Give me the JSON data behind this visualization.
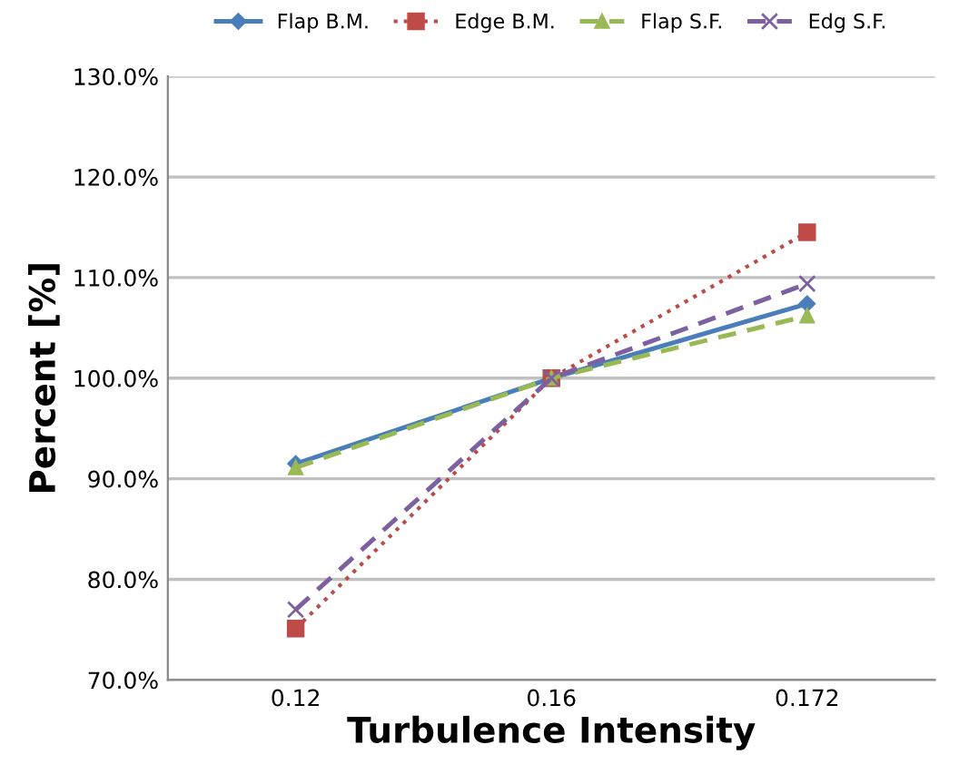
{
  "chart_data": {
    "type": "line",
    "xlabel": "Turbulence Intensity",
    "ylabel": "Percent [%]",
    "categories": [
      "0.12",
      "0.16",
      "0.172"
    ],
    "series": [
      {
        "name": "Flap B.M.",
        "color": "#4a7ebb",
        "values": [
          91.5,
          100,
          107.4
        ],
        "marker": "diamond",
        "line_style": "solid"
      },
      {
        "name": "Edge B.M.",
        "color": "#be4b48",
        "values": [
          75.1,
          100,
          114.5
        ],
        "marker": "square",
        "line_style": "dotted"
      },
      {
        "name": "Flap S.F.",
        "color": "#98b954",
        "values": [
          91.1,
          100,
          106.2
        ],
        "marker": "triangle",
        "line_style": "dashed"
      },
      {
        "name": "Edg S.F.",
        "color": "#7d60a0",
        "values": [
          77.0,
          100,
          109.4
        ],
        "marker": "cross",
        "line_style": "dashed"
      }
    ],
    "ylim": [
      70,
      130
    ],
    "yticks": [
      {
        "value": 70,
        "label": "70.0%"
      },
      {
        "value": 80,
        "label": "80.0%"
      },
      {
        "value": 90,
        "label": "90.0%"
      },
      {
        "value": 100,
        "label": "100.0%"
      },
      {
        "value": 110,
        "label": "110.0%"
      },
      {
        "value": 120,
        "label": "120.0%"
      },
      {
        "value": 130,
        "label": "130.0%"
      }
    ],
    "grid": "y",
    "legend": "top"
  }
}
